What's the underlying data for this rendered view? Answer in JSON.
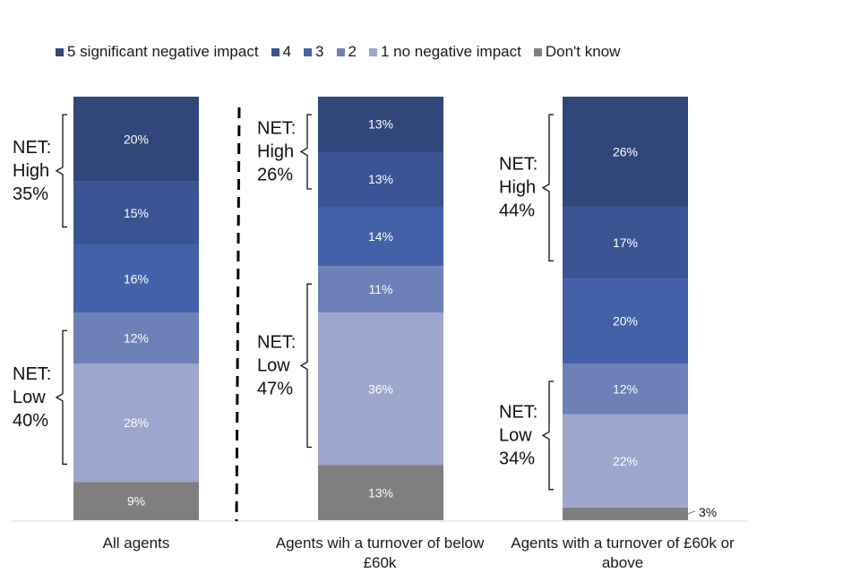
{
  "chart_data": {
    "type": "bar",
    "stacked": true,
    "categories": [
      "All agents",
      "Agents wih a turnover of below £60k",
      "Agents with a turnover of £60k or above"
    ],
    "category_lines": [
      [
        "All agents"
      ],
      [
        "Agents wih a turnover of below",
        "£60k"
      ],
      [
        "Agents with a turnover of £60k or",
        "above"
      ]
    ],
    "series": [
      {
        "name": "Don't know",
        "color": "#7f7f7f",
        "values": [
          9,
          13,
          3
        ],
        "labels": [
          "9%",
          "13%",
          "3%"
        ]
      },
      {
        "name": "1 no negative impact",
        "color": "#9da6cc",
        "values": [
          28,
          36,
          22
        ],
        "labels": [
          "28%",
          "36%",
          "22%"
        ]
      },
      {
        "name": "2",
        "color": "#6d80b7",
        "values": [
          12,
          11,
          12
        ],
        "labels": [
          "12%",
          "11%",
          "12%"
        ]
      },
      {
        "name": "3",
        "color": "#4261a8",
        "values": [
          16,
          14,
          20
        ],
        "labels": [
          "16%",
          "14%",
          "20%"
        ]
      },
      {
        "name": "4",
        "color": "#3a5494",
        "values": [
          15,
          13,
          17
        ],
        "labels": [
          "15%",
          "13%",
          "17%"
        ]
      },
      {
        "name": "5 significant negative impact",
        "color": "#31467a",
        "values": [
          20,
          13,
          26
        ],
        "labels": [
          "20%",
          "13%",
          "26%"
        ]
      }
    ],
    "legend": [
      "5 significant negative impact",
      "4",
      "3",
      "2",
      "1 no negative impact",
      "Don't know"
    ],
    "net_annotations": [
      {
        "bar": 0,
        "label": [
          "NET:",
          "High",
          "35%"
        ],
        "from": 4,
        "to": 5
      },
      {
        "bar": 0,
        "label": [
          "NET:",
          "Low",
          "40%"
        ],
        "from": 1,
        "to": 2
      },
      {
        "bar": 1,
        "label": [
          "NET:",
          "High",
          "26%"
        ],
        "from": 4,
        "to": 5
      },
      {
        "bar": 1,
        "label": [
          "NET:",
          "Low",
          "47%"
        ],
        "from": 1,
        "to": 2
      },
      {
        "bar": 2,
        "label": [
          "NET:",
          "High",
          "44%"
        ],
        "from": 4,
        "to": 5
      },
      {
        "bar": 2,
        "label": [
          "NET:",
          "Low",
          "34%"
        ],
        "from": 1,
        "to": 2
      }
    ],
    "ylim": [
      0,
      100
    ],
    "xlabel": "",
    "ylabel": ""
  }
}
